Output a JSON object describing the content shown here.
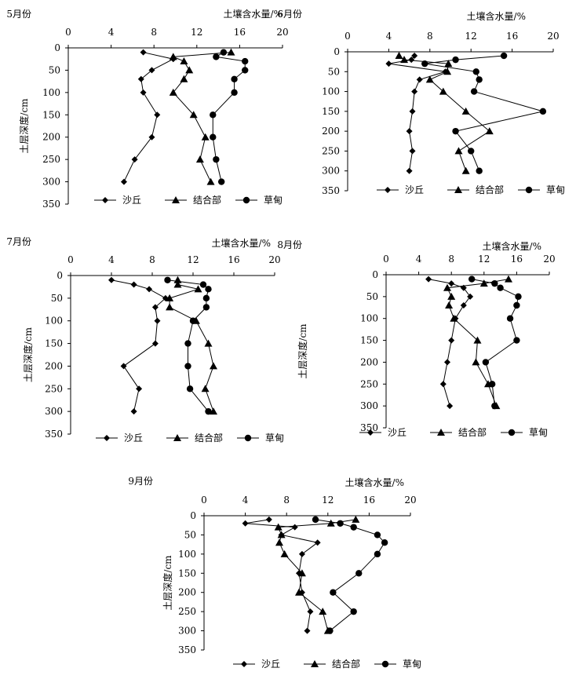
{
  "legend_labels": [
    "沙丘",
    "结合部",
    "草甸"
  ],
  "chart_data": [
    {
      "type": "line",
      "title": "5月份",
      "xlabel": "土壤含水量/%",
      "ylabel": "土层深度/cm",
      "xlim": [
        0,
        20
      ],
      "ylim": [
        0,
        350
      ],
      "xticks": [
        0,
        4,
        8,
        12,
        16,
        20
      ],
      "yticks": [
        0,
        50,
        100,
        150,
        200,
        250,
        300,
        350
      ],
      "x_axis_position": "top",
      "y_inverted": true,
      "grid": false,
      "legend": "bottom",
      "series": [
        {
          "name": "沙丘",
          "marker": "diamond",
          "points": [
            [
              7,
              10
            ],
            [
              9.8,
              25
            ],
            [
              7.8,
              50
            ],
            [
              6.8,
              70
            ],
            [
              7,
              100
            ],
            [
              8.3,
              150
            ],
            [
              7.8,
              200
            ],
            [
              6.2,
              250
            ],
            [
              5.2,
              300
            ]
          ]
        },
        {
          "name": "结合部",
          "marker": "triangle",
          "points": [
            [
              15.2,
              10
            ],
            [
              9.8,
              20
            ],
            [
              10.8,
              30
            ],
            [
              11.3,
              50
            ],
            [
              10.8,
              70
            ],
            [
              9.8,
              100
            ],
            [
              11.7,
              150
            ],
            [
              12.8,
              200
            ],
            [
              12.3,
              250
            ],
            [
              13.3,
              300
            ]
          ]
        },
        {
          "name": "草甸",
          "marker": "circle",
          "points": [
            [
              14.5,
              10
            ],
            [
              13.8,
              20
            ],
            [
              16.5,
              30
            ],
            [
              16.5,
              50
            ],
            [
              15.5,
              70
            ],
            [
              15.5,
              100
            ],
            [
              13.5,
              150
            ],
            [
              13.5,
              200
            ],
            [
              13.8,
              250
            ],
            [
              14.3,
              300
            ]
          ]
        }
      ]
    },
    {
      "type": "line",
      "title": "6月份",
      "xlabel": "土壤含水量/%",
      "ylabel": "",
      "xlim": [
        0,
        20
      ],
      "ylim": [
        0,
        350
      ],
      "xticks": [
        0,
        4,
        8,
        12,
        16,
        20
      ],
      "yticks": [
        0,
        50,
        100,
        150,
        200,
        250,
        300,
        350
      ],
      "x_axis_position": "top",
      "y_inverted": true,
      "grid": false,
      "legend": "bottom",
      "series": [
        {
          "name": "沙丘",
          "marker": "diamond",
          "points": [
            [
              6.5,
              10
            ],
            [
              6.2,
              20
            ],
            [
              4,
              30
            ],
            [
              9.5,
              50
            ],
            [
              7,
              70
            ],
            [
              6.5,
              100
            ],
            [
              6.3,
              150
            ],
            [
              6,
              200
            ],
            [
              6.3,
              250
            ],
            [
              6,
              300
            ]
          ]
        },
        {
          "name": "结合部",
          "marker": "triangle",
          "points": [
            [
              5,
              10
            ],
            [
              5.5,
              20
            ],
            [
              9.8,
              30
            ],
            [
              9.7,
              50
            ],
            [
              8,
              70
            ],
            [
              9.3,
              100
            ],
            [
              11.5,
              150
            ],
            [
              13.8,
              200
            ],
            [
              10.8,
              250
            ],
            [
              11.5,
              300
            ]
          ]
        },
        {
          "name": "草甸",
          "marker": "circle",
          "points": [
            [
              15.2,
              10
            ],
            [
              10.5,
              20
            ],
            [
              7.5,
              30
            ],
            [
              12.5,
              50
            ],
            [
              12.8,
              70
            ],
            [
              12.3,
              100
            ],
            [
              19,
              150
            ],
            [
              10.5,
              200
            ],
            [
              12,
              250
            ],
            [
              12.8,
              300
            ]
          ]
        }
      ]
    },
    {
      "type": "line",
      "title": "7月份",
      "xlabel": "土壤含水量/%",
      "ylabel": "土层深度/cm",
      "xlim": [
        0,
        20
      ],
      "ylim": [
        0,
        350
      ],
      "xticks": [
        0,
        4,
        8,
        12,
        16,
        20
      ],
      "yticks": [
        0,
        50,
        100,
        150,
        200,
        250,
        300,
        350
      ],
      "x_axis_position": "top",
      "y_inverted": true,
      "grid": false,
      "legend": "bottom",
      "series": [
        {
          "name": "沙丘",
          "marker": "diamond",
          "points": [
            [
              4,
              10
            ],
            [
              6.2,
              20
            ],
            [
              7.7,
              30
            ],
            [
              9.3,
              50
            ],
            [
              8.3,
              70
            ],
            [
              8.5,
              100
            ],
            [
              8.3,
              150
            ],
            [
              5.2,
              200
            ],
            [
              6.7,
              250
            ],
            [
              6.2,
              300
            ]
          ]
        },
        {
          "name": "结合部",
          "marker": "triangle",
          "points": [
            [
              10.5,
              10
            ],
            [
              10.5,
              20
            ],
            [
              12.5,
              30
            ],
            [
              9.7,
              50
            ],
            [
              9.7,
              70
            ],
            [
              12.3,
              100
            ],
            [
              13.5,
              150
            ],
            [
              14,
              200
            ],
            [
              13.2,
              250
            ],
            [
              14,
              300
            ]
          ]
        },
        {
          "name": "草甸",
          "marker": "circle",
          "points": [
            [
              9.5,
              10
            ],
            [
              13,
              20
            ],
            [
              13.5,
              30
            ],
            [
              13.3,
              50
            ],
            [
              13.3,
              70
            ],
            [
              12,
              100
            ],
            [
              11.5,
              150
            ],
            [
              11.5,
              200
            ],
            [
              11.7,
              250
            ],
            [
              13.5,
              300
            ]
          ]
        }
      ]
    },
    {
      "type": "line",
      "title": "8月份",
      "xlabel": "土壤含水量/%",
      "ylabel": "土层深度/cm",
      "xlim": [
        0,
        20
      ],
      "ylim": [
        0,
        350
      ],
      "xticks": [
        0,
        4,
        8,
        12,
        16,
        20
      ],
      "yticks": [
        0,
        50,
        100,
        150,
        200,
        250,
        300,
        350
      ],
      "x_axis_position": "top",
      "y_inverted": true,
      "grid": false,
      "legend": "bottom",
      "series": [
        {
          "name": "沙丘",
          "marker": "diamond",
          "points": [
            [
              5.2,
              10
            ],
            [
              8,
              20
            ],
            [
              9.5,
              30
            ],
            [
              10.3,
              50
            ],
            [
              9.5,
              70
            ],
            [
              8.5,
              100
            ],
            [
              8,
              150
            ],
            [
              7.5,
              200
            ],
            [
              7,
              250
            ],
            [
              7.8,
              300
            ]
          ]
        },
        {
          "name": "结合部",
          "marker": "triangle",
          "points": [
            [
              15,
              10
            ],
            [
              12,
              20
            ],
            [
              7.5,
              30
            ],
            [
              8,
              50
            ],
            [
              7.7,
              70
            ],
            [
              8.3,
              100
            ],
            [
              11.2,
              150
            ],
            [
              11,
              200
            ],
            [
              12.5,
              250
            ],
            [
              13.5,
              300
            ]
          ]
        },
        {
          "name": "草甸",
          "marker": "circle",
          "points": [
            [
              10.5,
              10
            ],
            [
              13.3,
              20
            ],
            [
              14,
              30
            ],
            [
              16.2,
              50
            ],
            [
              16,
              70
            ],
            [
              15.2,
              100
            ],
            [
              16,
              150
            ],
            [
              12.2,
              200
            ],
            [
              13,
              250
            ],
            [
              13.3,
              300
            ]
          ]
        }
      ]
    },
    {
      "type": "line",
      "title": "9月份",
      "xlabel": "土壤含水量/%",
      "ylabel": "土层深度/cm",
      "xlim": [
        0,
        20
      ],
      "ylim": [
        0,
        350
      ],
      "xticks": [
        0,
        4,
        8,
        12,
        16,
        20
      ],
      "yticks": [
        0,
        50,
        100,
        150,
        200,
        250,
        300,
        350
      ],
      "x_axis_position": "top",
      "y_inverted": true,
      "grid": false,
      "legend": "bottom",
      "series": [
        {
          "name": "沙丘",
          "marker": "diamond",
          "points": [
            [
              6.3,
              10
            ],
            [
              4,
              20
            ],
            [
              8.8,
              30
            ],
            [
              7.5,
              50
            ],
            [
              11,
              70
            ],
            [
              9.5,
              100
            ],
            [
              9.2,
              150
            ],
            [
              9.5,
              200
            ],
            [
              10.3,
              250
            ],
            [
              10,
              300
            ]
          ]
        },
        {
          "name": "结合部",
          "marker": "triangle",
          "points": [
            [
              14.7,
              10
            ],
            [
              12.3,
              20
            ],
            [
              7.2,
              30
            ],
            [
              7.5,
              50
            ],
            [
              7.3,
              70
            ],
            [
              7.8,
              100
            ],
            [
              9.5,
              150
            ],
            [
              9.2,
              200
            ],
            [
              11.5,
              250
            ],
            [
              12,
              300
            ]
          ]
        },
        {
          "name": "草甸",
          "marker": "circle",
          "points": [
            [
              10.8,
              10
            ],
            [
              13.2,
              20
            ],
            [
              14.5,
              30
            ],
            [
              16.8,
              50
            ],
            [
              17.5,
              70
            ],
            [
              16.8,
              100
            ],
            [
              15,
              150
            ],
            [
              12.5,
              200
            ],
            [
              14.5,
              250
            ],
            [
              12.2,
              300
            ]
          ]
        }
      ]
    }
  ]
}
